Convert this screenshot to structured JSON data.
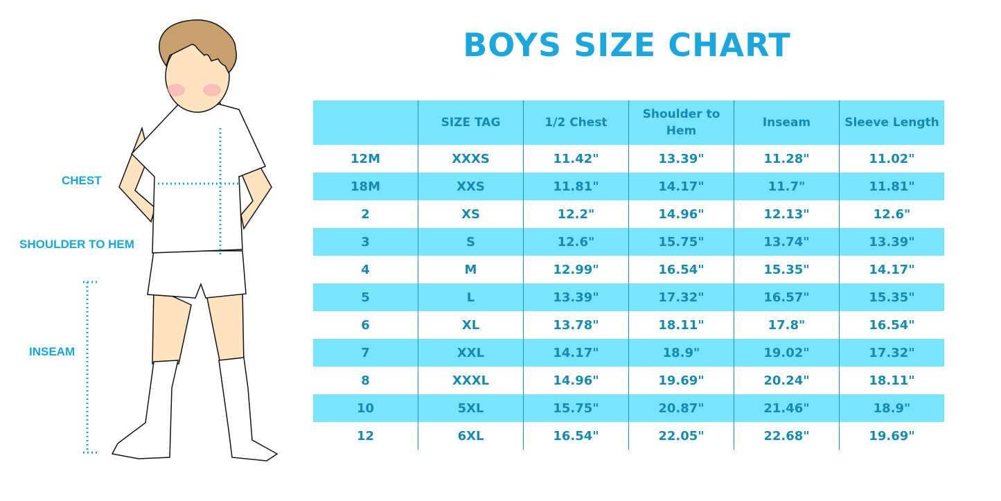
{
  "title": "BOYS SIZE CHART",
  "figure_labels": {
    "chest": "CHEST",
    "shoulder_to_hem": "SHOULDER TO HEM",
    "inseam": "INSEAM"
  },
  "colors": {
    "title": "#1ba6de",
    "header_bg": "#79e4fd",
    "text": "#1689b2",
    "measure_line": "#13a7dc"
  },
  "table": {
    "headers": [
      "",
      "SIZE TAG",
      "1/2 Chest",
      "Shoulder to Hem",
      "Inseam",
      "Sleeve Length"
    ],
    "rows": [
      [
        "12M",
        "XXXS",
        "11.42\"",
        "13.39\"",
        "11.28\"",
        "11.02\""
      ],
      [
        "18M",
        "XXS",
        "11.81\"",
        "14.17\"",
        "11.7\"",
        "11.81\""
      ],
      [
        "2",
        "XS",
        "12.2\"",
        "14.96\"",
        "12.13\"",
        "12.6\""
      ],
      [
        "3",
        "S",
        "12.6\"",
        "15.75\"",
        "13.74\"",
        "13.39\""
      ],
      [
        "4",
        "M",
        "12.99\"",
        "16.54\"",
        "15.35\"",
        "14.17\""
      ],
      [
        "5",
        "L",
        "13.39\"",
        "17.32\"",
        "16.57\"",
        "15.35\""
      ],
      [
        "6",
        "XL",
        "13.78\"",
        "18.11\"",
        "17.8\"",
        "16.54\""
      ],
      [
        "7",
        "XXL",
        "14.17\"",
        "18.9\"",
        "19.02\"",
        "17.32\""
      ],
      [
        "8",
        "XXXL",
        "14.96\"",
        "19.69\"",
        "20.24\"",
        "18.11\""
      ],
      [
        "10",
        "5XL",
        "15.75\"",
        "20.87\"",
        "21.46\"",
        "18.9\""
      ],
      [
        "12",
        "6XL",
        "16.54\"",
        "22.05\"",
        "22.68\"",
        "19.69\""
      ]
    ]
  }
}
